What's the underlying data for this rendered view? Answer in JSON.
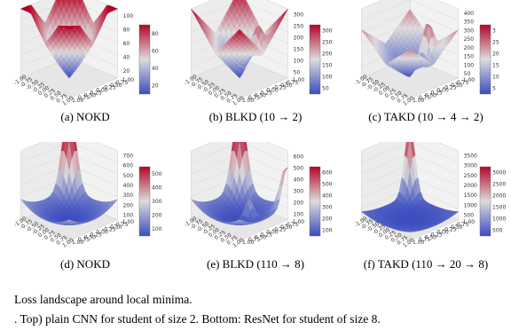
{
  "figure": {
    "caption_line1": "Loss landscape around local minima.",
    "caption_line2": ". Top) plain CNN for student of size 2. Bottom: ResNet for student of size 8."
  },
  "chart_data": [
    {
      "type": "surface",
      "label": "(a) NOKD",
      "zticks": [
        "20",
        "40",
        "60",
        "80",
        "100"
      ],
      "cbar": [
        "20",
        "40",
        "60",
        "80"
      ],
      "xticks": [
        "-1.00",
        "-0.75",
        "-0.50",
        "-0.25",
        "0.00",
        "0.25",
        "0.50",
        "0.75",
        "1.00"
      ],
      "yticks": [
        "-1.00",
        "-0.75",
        "-0.50",
        "-0.25",
        "0.00",
        "0.25",
        "0.50",
        "0.75",
        "1.00"
      ],
      "shape": "bowl-deep",
      "colors": [
        "#3b4cc0",
        "#dddcdc",
        "#b40426"
      ]
    },
    {
      "type": "surface",
      "label": "(b) BLKD (10 → 2)",
      "zticks": [
        "50",
        "100",
        "150",
        "200",
        "250",
        "300"
      ],
      "cbar": [
        "50",
        "100",
        "150",
        "200",
        "250",
        "300"
      ],
      "shape": "bowl-ridge",
      "colors": [
        "#3b4cc0",
        "#dddcdc",
        "#b40426"
      ]
    },
    {
      "type": "surface",
      "label": "(c) TAKD (10 → 4 → 2)",
      "zticks": [
        "50",
        "100",
        "150",
        "200",
        "250",
        "300",
        "350",
        "400"
      ],
      "cbar": [
        "5",
        "10",
        "15",
        "20",
        "25",
        "3"
      ],
      "shape": "bowl-shallow",
      "colors": [
        "#3b4cc0",
        "#dddcdc",
        "#b40426"
      ]
    },
    {
      "type": "surface",
      "label": "(d) NOKD",
      "zticks": [
        "100",
        "200",
        "300",
        "400",
        "500",
        "600",
        "700"
      ],
      "cbar": [
        "100",
        "200",
        "300",
        "400",
        "500"
      ],
      "shape": "spike",
      "colors": [
        "#3b4cc0",
        "#dddcdc",
        "#b40426"
      ]
    },
    {
      "type": "surface",
      "label": "(e) BLKD (110 → 8)",
      "zticks": [
        "100",
        "200",
        "300",
        "400",
        "500",
        "600"
      ],
      "cbar": [
        "100",
        "200",
        "300",
        "400",
        "500",
        "600"
      ],
      "shape": "spike-multi",
      "colors": [
        "#3b4cc0",
        "#dddcdc",
        "#b40426"
      ]
    },
    {
      "type": "surface",
      "label": "(f) TAKD (110 → 20 → 8)",
      "zticks": [
        "500",
        "1000",
        "1500",
        "2000",
        "2500",
        "3000",
        "3500"
      ],
      "cbar": [
        "500",
        "1000",
        "1500",
        "2000",
        "2500",
        "3000"
      ],
      "shape": "spike-flat",
      "colors": [
        "#3b4cc0",
        "#dddcdc",
        "#b40426"
      ]
    }
  ]
}
